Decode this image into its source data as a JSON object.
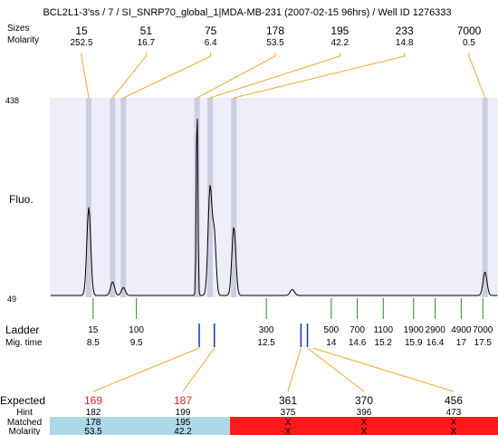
{
  "title": "BCL2L1-3'ss / 7 / SI_SNRP70_global_1|MDA-MB-231 (2007-02-15 96hrs) / Well ID 1276333",
  "labels": {
    "sizes": "Sizes",
    "molarity": "Molarity",
    "fluo": "Fluo.",
    "ladder": "Ladder",
    "mig_time": "Mig. time",
    "expected": "Expected",
    "hint": "Hint",
    "matched": "Matched",
    "molarity_bottom": "Molarity",
    "y_max": "438",
    "y_min": "49"
  },
  "chart_data": {
    "type": "line",
    "ylim": [
      49,
      438
    ],
    "peaks": [
      {
        "size": "15",
        "molarity": "252.5",
        "time": 8.4,
        "height": 0.45
      },
      {
        "size": "51",
        "molarity": "16.7",
        "time": 8.95,
        "height": 0.07
      },
      {
        "size": "75",
        "molarity": "6.4",
        "time": 9.2,
        "height": 0.04
      },
      {
        "size": "178",
        "molarity": "53.5",
        "time": 10.9,
        "height": 1.0
      },
      {
        "size": "195",
        "molarity": "42.2",
        "time": 11.2,
        "height": 0.55
      },
      {
        "size": "233",
        "molarity": "14.8",
        "time": 11.75,
        "height": 0.35
      },
      {
        "size": "7000",
        "molarity": "0.5",
        "time": 17.55,
        "height": 0.12
      }
    ],
    "ladder": [
      {
        "size": "15",
        "time": "8.5"
      },
      {
        "size": "100",
        "time": "9.5"
      },
      {
        "size": "300",
        "time": "12.5"
      },
      {
        "size": "500",
        "time": "14"
      },
      {
        "size": "700",
        "time": "14.6"
      },
      {
        "size": "1100",
        "time": "15.2"
      },
      {
        "size": "1900",
        "time": "15.9"
      },
      {
        "size": "2900",
        "time": "16.4"
      },
      {
        "size": "4900",
        "time": "17"
      },
      {
        "size": "7000",
        "time": "17.5"
      }
    ],
    "expected": [
      {
        "expected": "169",
        "hint": "182",
        "matched": "178",
        "molarity": "53.5",
        "ok": true
      },
      {
        "expected": "187",
        "hint": "199",
        "matched": "195",
        "molarity": "42.2",
        "ok": true
      },
      {
        "expected": "361",
        "hint": "375",
        "matched": "X",
        "molarity": "X",
        "ok": false
      },
      {
        "expected": "370",
        "hint": "396",
        "matched": "X",
        "molarity": "X",
        "ok": false
      },
      {
        "expected": "456",
        "hint": "473",
        "matched": "X",
        "molarity": "X",
        "ok": false
      }
    ],
    "hint_marks": [
      {
        "time": 10.95
      },
      {
        "time": 11.3
      },
      {
        "time": 13.3
      },
      {
        "time": 13.45
      }
    ]
  },
  "colors": {
    "plot_bg": "#eeeef9",
    "trace": "#000000",
    "peak_band": "#cdcde0",
    "connector": "#f0a830",
    "ladder_tick": "#228833",
    "hint_mark": "#1030d0",
    "matched_bg": "#add8e6",
    "unmatched_bg": "#ff1a1a",
    "expected_ok": "#e0202a"
  }
}
